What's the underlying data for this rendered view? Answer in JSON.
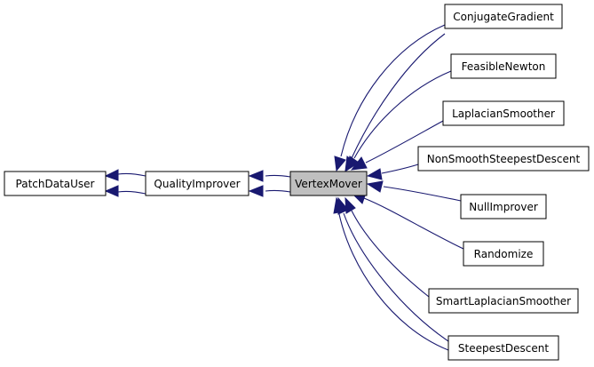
{
  "diagram": {
    "nodes": {
      "patch_data_user": "PatchDataUser",
      "quality_improver": "QualityImprover",
      "vertex_mover": "VertexMover",
      "conjugate_gradient": "ConjugateGradient",
      "feasible_newton": "FeasibleNewton",
      "laplacian_smoother": "LaplacianSmoother",
      "non_smooth_steepest_descent": "NonSmoothSteepestDescent",
      "null_improver": "NullImprover",
      "randomize": "Randomize",
      "smart_laplacian_smoother": "SmartLaplacianSmoother",
      "steepest_descent": "SteepestDescent"
    },
    "colors": {
      "edge": "#191970",
      "node_border": "#000000",
      "current_fill": "#bfbfbf"
    }
  }
}
